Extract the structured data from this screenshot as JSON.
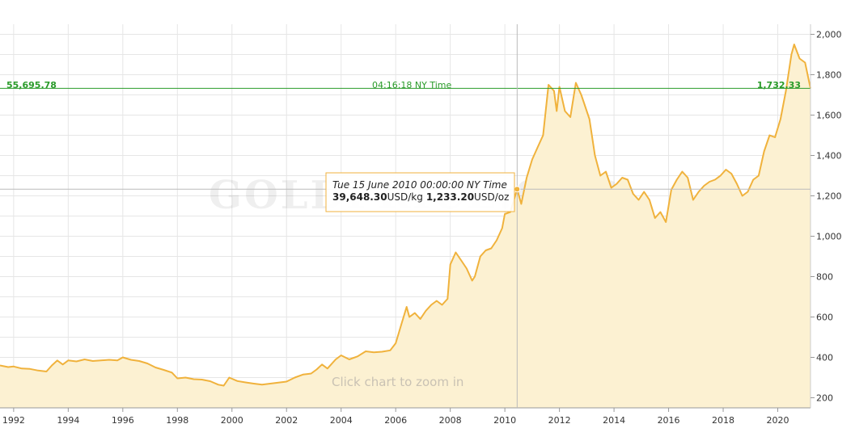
{
  "watermark": "GOLDPRICE.ORG",
  "zoom_hint": "Click chart to zoom in",
  "live_line": {
    "value": 1732.33,
    "left_label": "55,695.78",
    "center_label": "04:16:18 NY Time",
    "right_label": "1,732.33"
  },
  "tooltip": {
    "title": "Tue 15 June 2010 00:00:00 NY Time",
    "kg_value": "39,648.30",
    "kg_unit": "USD/kg",
    "oz_value": "1,233.20",
    "oz_unit": "USD/oz",
    "x": 2010.45,
    "y": 1233.2
  },
  "colors": {
    "line": "#f0b23c",
    "fill": "#fcf1d2",
    "live_line": "#2a9b2a",
    "grid": "#e6e6e6"
  },
  "chart_data": {
    "type": "area",
    "title": "",
    "xlabel": "",
    "ylabel": "",
    "xlim": [
      1991.5,
      2021.2
    ],
    "ylim": [
      150,
      2050
    ],
    "x_ticks": [
      1992,
      1994,
      1996,
      1998,
      2000,
      2002,
      2004,
      2006,
      2008,
      2010,
      2012,
      2014,
      2016,
      2018,
      2020
    ],
    "y_ticks": [
      200,
      400,
      600,
      800,
      1000,
      1200,
      1400,
      1600,
      1800,
      2000
    ],
    "y_tick_labels": [
      "200",
      "400",
      "600",
      "800",
      "1,000",
      "1,200",
      "1,400",
      "1,600",
      "1,800",
      "2,000"
    ],
    "grid": true,
    "series": [
      {
        "x": [
          1991.5,
          1991.8,
          1992.0,
          1992.3,
          1992.6,
          1992.9,
          1993.2,
          1993.4,
          1993.6,
          1993.8,
          1994.0,
          1994.3,
          1994.6,
          1994.9,
          1995.2,
          1995.5,
          1995.8,
          1996.0,
          1996.3,
          1996.6,
          1996.9,
          1997.2,
          1997.5,
          1997.8,
          1998.0,
          1998.3,
          1998.6,
          1998.9,
          1999.2,
          1999.5,
          1999.7,
          1999.9,
          2000.2,
          2000.5,
          2000.8,
          2001.1,
          2001.4,
          2001.7,
          2002.0,
          2002.3,
          2002.6,
          2002.9,
          2003.1,
          2003.3,
          2003.5,
          2003.8,
          2004.0,
          2004.3,
          2004.6,
          2004.9,
          2005.2,
          2005.5,
          2005.8,
          2006.0,
          2006.2,
          2006.4,
          2006.5,
          2006.7,
          2006.9,
          2007.1,
          2007.3,
          2007.5,
          2007.7,
          2007.9,
          2008.0,
          2008.2,
          2008.4,
          2008.6,
          2008.8,
          2008.9,
          2009.1,
          2009.3,
          2009.5,
          2009.7,
          2009.9,
          2010.0,
          2010.2,
          2010.45,
          2010.6,
          2010.8,
          2011.0,
          2011.2,
          2011.4,
          2011.6,
          2011.8,
          2011.9,
          2012.0,
          2012.2,
          2012.4,
          2012.6,
          2012.8,
          2012.9,
          2013.1,
          2013.3,
          2013.5,
          2013.7,
          2013.9,
          2014.1,
          2014.3,
          2014.5,
          2014.7,
          2014.9,
          2015.1,
          2015.3,
          2015.5,
          2015.7,
          2015.9,
          2016.1,
          2016.3,
          2016.5,
          2016.7,
          2016.9,
          2017.1,
          2017.3,
          2017.5,
          2017.7,
          2017.9,
          2018.1,
          2018.3,
          2018.5,
          2018.7,
          2018.9,
          2019.1,
          2019.3,
          2019.5,
          2019.7,
          2019.9,
          2020.1,
          2020.3,
          2020.5,
          2020.6,
          2020.8,
          2021.0,
          2021.2
        ],
        "values": [
          360,
          352,
          355,
          345,
          343,
          335,
          330,
          360,
          385,
          365,
          385,
          380,
          390,
          382,
          385,
          388,
          385,
          400,
          388,
          382,
          370,
          350,
          338,
          325,
          296,
          300,
          292,
          290,
          282,
          265,
          260,
          300,
          283,
          276,
          270,
          265,
          270,
          275,
          280,
          300,
          315,
          320,
          340,
          365,
          345,
          390,
          410,
          390,
          405,
          430,
          425,
          428,
          435,
          470,
          560,
          650,
          600,
          620,
          590,
          630,
          660,
          680,
          660,
          690,
          860,
          920,
          880,
          840,
          780,
          800,
          900,
          930,
          940,
          980,
          1040,
          1110,
          1120,
          1233,
          1160,
          1290,
          1380,
          1440,
          1500,
          1750,
          1720,
          1620,
          1740,
          1620,
          1590,
          1760,
          1700,
          1660,
          1580,
          1400,
          1300,
          1320,
          1240,
          1260,
          1290,
          1280,
          1210,
          1180,
          1220,
          1180,
          1090,
          1120,
          1070,
          1230,
          1280,
          1320,
          1290,
          1180,
          1220,
          1250,
          1270,
          1280,
          1300,
          1330,
          1310,
          1260,
          1200,
          1220,
          1280,
          1300,
          1420,
          1500,
          1490,
          1580,
          1720,
          1900,
          1950,
          1880,
          1860,
          1732
        ]
      }
    ]
  }
}
